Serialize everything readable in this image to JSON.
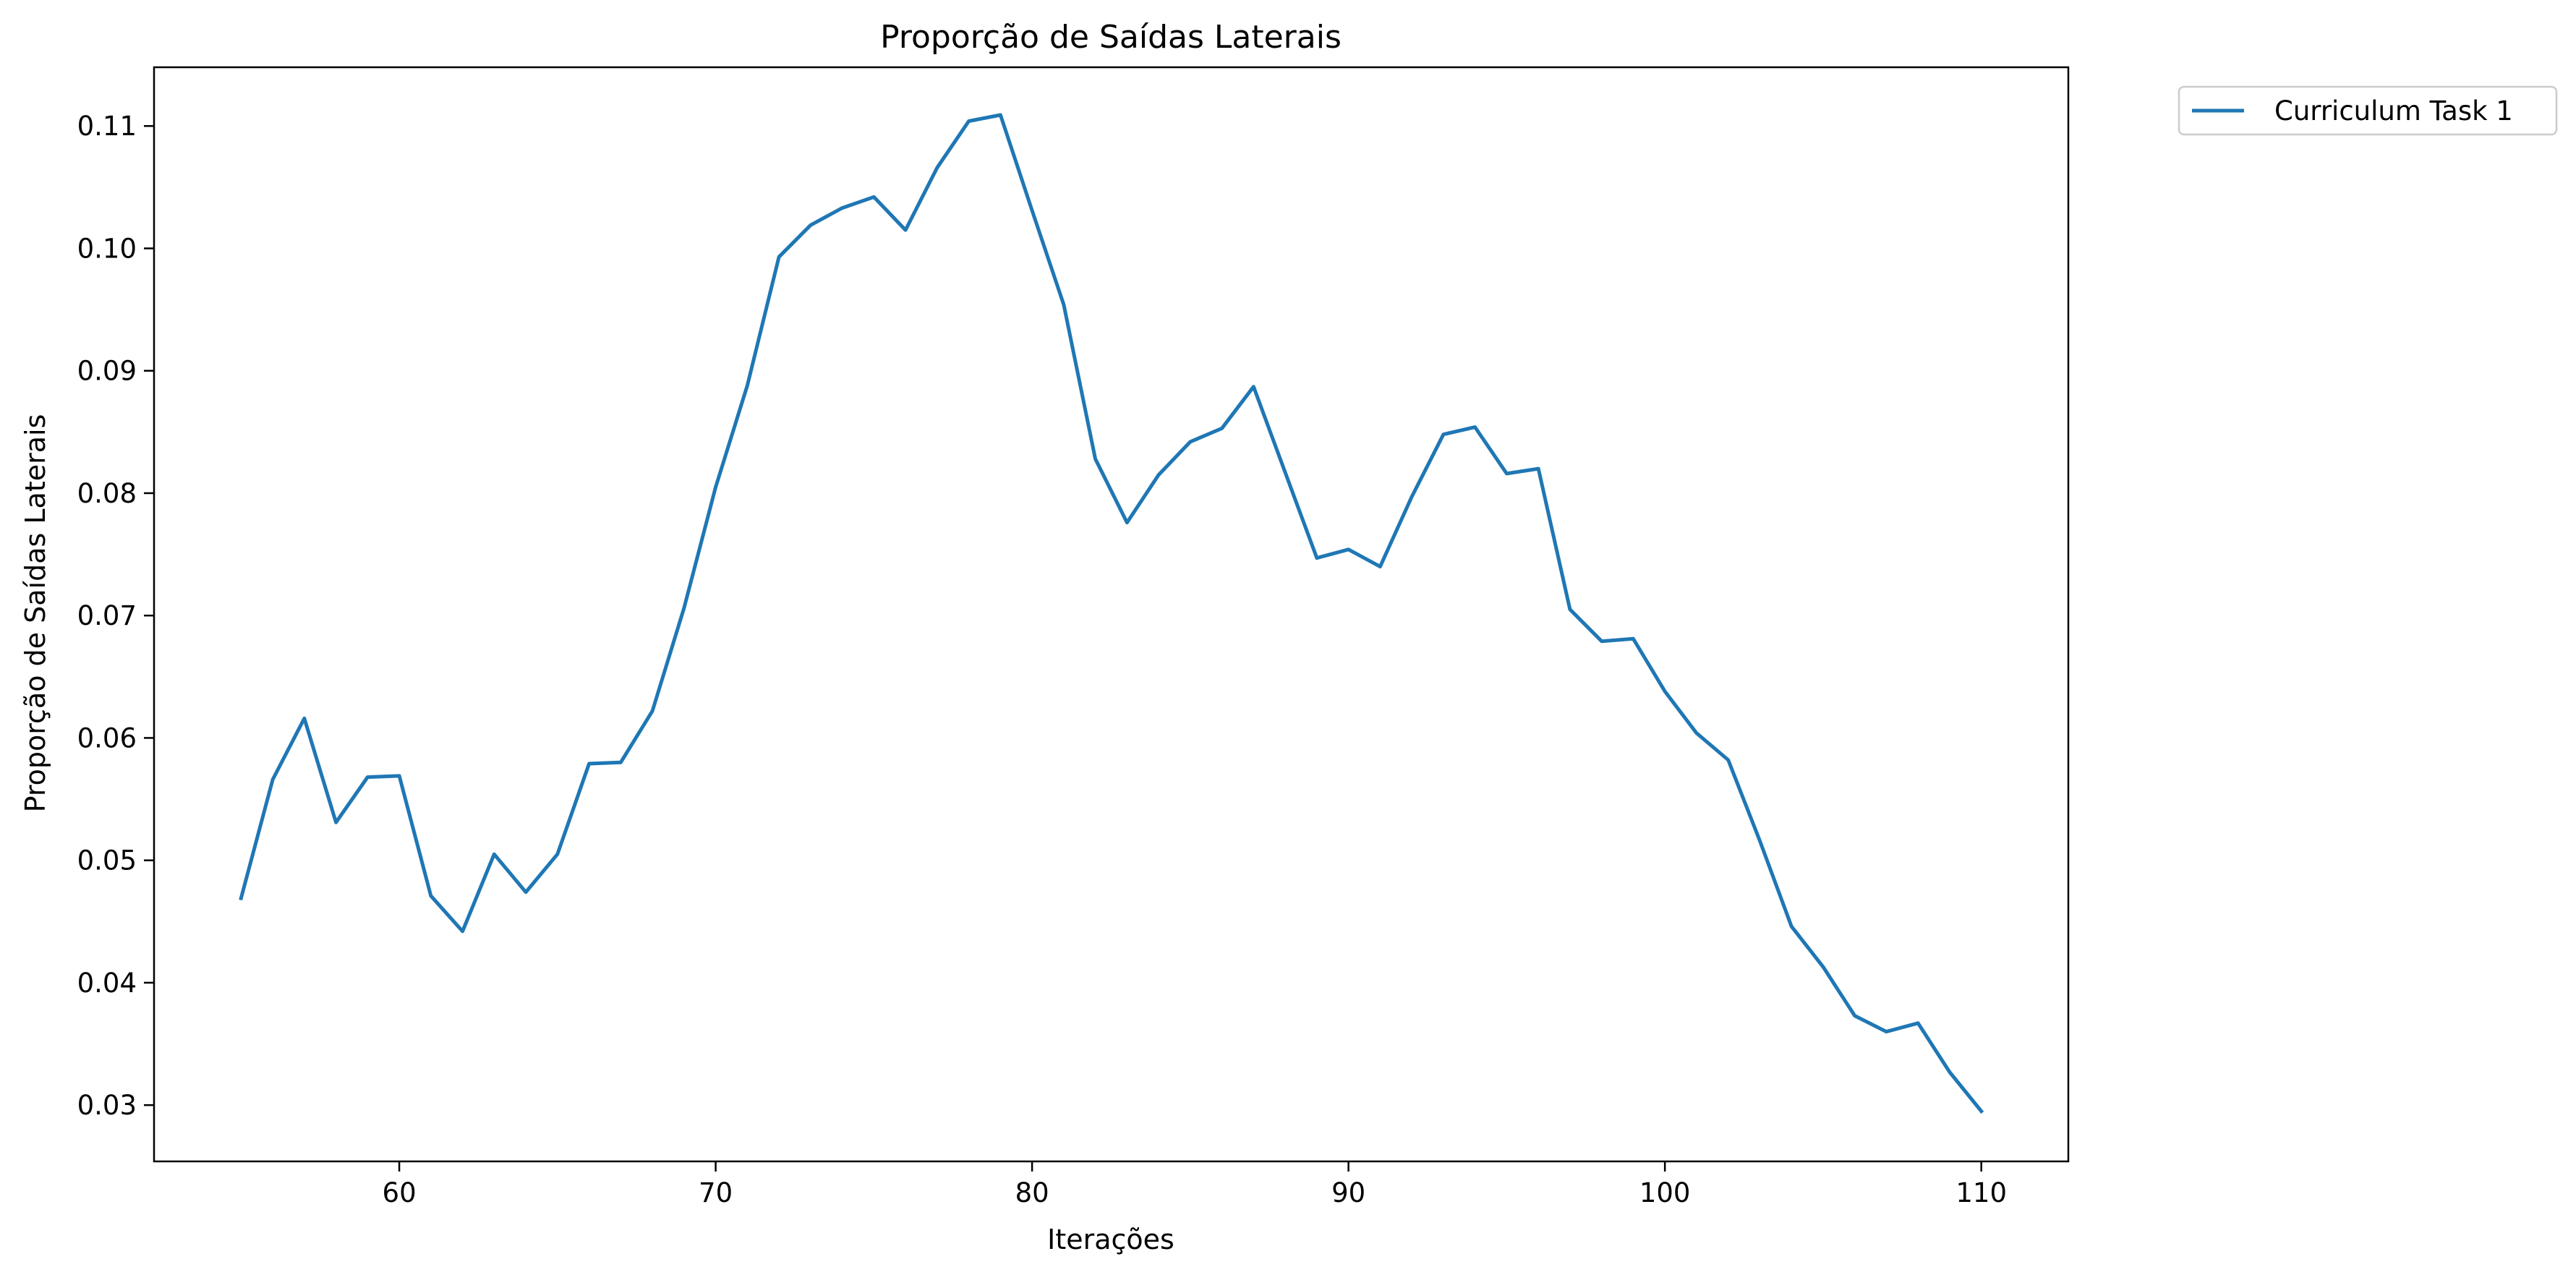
{
  "chart_data": {
    "type": "line",
    "title": "Proporção de Saídas Laterais",
    "xlabel": "Iterações",
    "ylabel": "Proporção de Saídas Laterais",
    "xlim": [
      52.25,
      112.75
    ],
    "ylim": [
      0.0254,
      0.1148
    ],
    "x_ticks": [
      60,
      70,
      80,
      90,
      100,
      110
    ],
    "y_ticks": [
      0.03,
      0.04,
      0.05,
      0.06,
      0.07,
      0.08,
      0.09,
      0.1,
      0.11
    ],
    "y_tick_labels": [
      "0.03",
      "0.04",
      "0.05",
      "0.06",
      "0.07",
      "0.08",
      "0.09",
      "0.10",
      "0.11"
    ],
    "grid": false,
    "legend_position": "outside-top-right",
    "series": [
      {
        "name": "Curriculum Task 1",
        "color": "#1f77b4",
        "x": [
          55,
          56,
          57,
          58,
          59,
          60,
          61,
          62,
          63,
          64,
          65,
          66,
          67,
          68,
          69,
          70,
          71,
          72,
          73,
          74,
          75,
          76,
          77,
          78,
          79,
          80,
          81,
          82,
          83,
          84,
          85,
          86,
          87,
          88,
          89,
          90,
          91,
          92,
          93,
          94,
          95,
          96,
          97,
          98,
          99,
          100,
          101,
          102,
          103,
          104,
          105,
          106,
          107,
          108,
          109,
          110
        ],
        "y": [
          0.0469,
          0.0566,
          0.0616,
          0.0531,
          0.0568,
          0.0569,
          0.0471,
          0.0442,
          0.0505,
          0.0474,
          0.0505,
          0.0579,
          0.058,
          0.0622,
          0.0706,
          0.0805,
          0.0888,
          0.0993,
          0.1019,
          0.1033,
          0.1042,
          0.1015,
          0.1066,
          0.1104,
          0.1109,
          0.1031,
          0.0954,
          0.0828,
          0.0776,
          0.0815,
          0.0842,
          0.0853,
          0.0887,
          0.0817,
          0.0747,
          0.0754,
          0.074,
          0.0797,
          0.0848,
          0.0854,
          0.0816,
          0.082,
          0.0705,
          0.0679,
          0.0681,
          0.0638,
          0.0604,
          0.0582,
          0.0516,
          0.0446,
          0.0413,
          0.0373,
          0.036,
          0.0367,
          0.0327,
          0.0295
        ]
      }
    ]
  }
}
